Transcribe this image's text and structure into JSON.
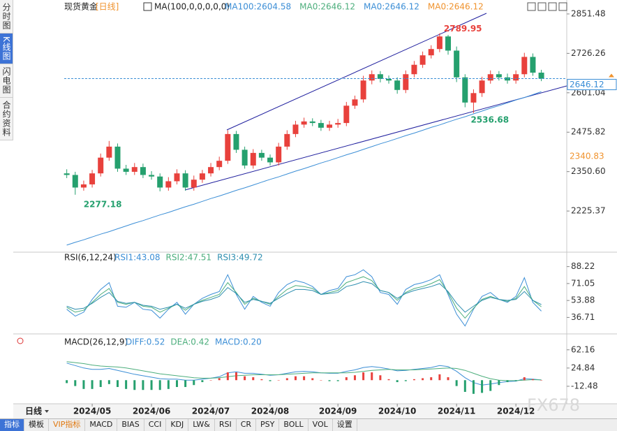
{
  "sidebar": [
    "分时图",
    "K线图",
    "闪电图",
    "合约资料"
  ],
  "chart_data": [
    {
      "type": "candlestick",
      "title": "现货黄金",
      "period": "[日线]",
      "indicator": "MA(100,0,0,0,0,0)",
      "legend": [
        {
          "text": "MA100:2604.58",
          "color": "#3b8ed6"
        },
        {
          "text": "MA0:2646.12",
          "color": "#4cae7c"
        },
        {
          "text": "MA0:2646.12",
          "color": "#3b8ed6"
        },
        {
          "text": "MA0:2646.12",
          "color": "#f0932e"
        }
      ],
      "open": [
        2345,
        2340,
        2300,
        2310,
        2345,
        2395,
        2430,
        2360,
        2350,
        2365,
        2340,
        2335,
        2300,
        2320,
        2345,
        2300,
        2325,
        2345,
        2365,
        2385,
        2470,
        2420,
        2370,
        2410,
        2395,
        2380,
        2430,
        2470,
        2500,
        2510,
        2505,
        2490,
        2500,
        2505,
        2560,
        2580,
        2640,
        2660,
        2645,
        2640,
        2610,
        2660,
        2690,
        2720,
        2740,
        2780,
        2735,
        2650,
        2570,
        2600,
        2640,
        2660,
        2650,
        2640,
        2660,
        2715,
        2665
      ],
      "high": [
        2358,
        2350,
        2322,
        2356,
        2408,
        2448,
        2440,
        2372,
        2378,
        2376,
        2352,
        2345,
        2333,
        2358,
        2355,
        2338,
        2356,
        2378,
        2398,
        2482,
        2480,
        2430,
        2422,
        2420,
        2405,
        2442,
        2482,
        2512,
        2522,
        2520,
        2515,
        2512,
        2518,
        2572,
        2592,
        2655,
        2672,
        2670,
        2656,
        2650,
        2672,
        2702,
        2732,
        2752,
        2789.95,
        2785,
        2748,
        2660,
        2612,
        2652,
        2672,
        2670,
        2662,
        2672,
        2728,
        2726,
        2674
      ],
      "low": [
        2330,
        2277.18,
        2290,
        2300,
        2335,
        2385,
        2350,
        2340,
        2340,
        2330,
        2325,
        2288,
        2290,
        2310,
        2290,
        2290,
        2315,
        2335,
        2355,
        2375,
        2410,
        2360,
        2360,
        2385,
        2370,
        2370,
        2420,
        2460,
        2490,
        2495,
        2480,
        2480,
        2490,
        2495,
        2550,
        2570,
        2628,
        2634,
        2630,
        2598,
        2600,
        2650,
        2680,
        2710,
        2730,
        2722,
        2635,
        2555,
        2536.68,
        2588,
        2630,
        2640,
        2630,
        2630,
        2650,
        2655,
        2638
      ],
      "close": [
        2340,
        2300,
        2310,
        2345,
        2395,
        2430,
        2360,
        2350,
        2365,
        2340,
        2335,
        2300,
        2320,
        2345,
        2300,
        2325,
        2345,
        2365,
        2385,
        2470,
        2420,
        2370,
        2410,
        2395,
        2380,
        2430,
        2470,
        2500,
        2510,
        2505,
        2490,
        2500,
        2505,
        2560,
        2580,
        2640,
        2660,
        2645,
        2640,
        2610,
        2660,
        2690,
        2720,
        2740,
        2780,
        2735,
        2650,
        2570,
        2600,
        2640,
        2660,
        2650,
        2640,
        2660,
        2715,
        2665,
        2646.12
      ],
      "ma100": [
        2117,
        2126,
        2134,
        2143,
        2152,
        2160,
        2169,
        2178,
        2187,
        2195,
        2204,
        2213,
        2221,
        2230,
        2239,
        2247,
        2256,
        2265,
        2273,
        2282,
        2291,
        2299,
        2308,
        2317,
        2326,
        2334,
        2343,
        2352,
        2360,
        2369,
        2378,
        2386,
        2395,
        2404,
        2412,
        2421,
        2430,
        2439,
        2447,
        2456,
        2465,
        2473,
        2482,
        2491,
        2499,
        2508,
        2517,
        2525,
        2534,
        2543,
        2552,
        2560,
        2569,
        2578,
        2586,
        2595,
        2604.58
      ],
      "up_color": "#e8413c",
      "down_color": "#25a06e",
      "ma_color": "#3b8ed6",
      "xlim": [
        -0.3,
        59
      ],
      "xticks": [
        {
          "value": 3,
          "label": "2024/05"
        },
        {
          "value": 10,
          "label": "2024/06"
        },
        {
          "value": 17,
          "label": "2024/07"
        },
        {
          "value": 24,
          "label": "2024/08"
        },
        {
          "value": 32,
          "label": "2024/09"
        },
        {
          "value": 39,
          "label": "2024/10"
        },
        {
          "value": 46,
          "label": "2024/11"
        },
        {
          "value": 53,
          "label": "2024/12"
        }
      ],
      "ylim": [
        2108,
        2878
      ],
      "yticks": [
        2851.48,
        2726.26,
        2601.04,
        2475.82,
        {
          "value": 2350.6,
          "label": "2350.60"
        },
        2225.37
      ],
      "side_label": 2340.83
    },
    {
      "type": "line",
      "title": "RSI(6,12,24)",
      "series": [
        {
          "name": "RSI1:43.08",
          "color": "#3b8ed6",
          "values": [
            45,
            38,
            42,
            55,
            65,
            72,
            48,
            47,
            52,
            45,
            44,
            36,
            45,
            52,
            40,
            50,
            56,
            60,
            63,
            80,
            60,
            45,
            58,
            52,
            48,
            62,
            70,
            74,
            72,
            68,
            60,
            64,
            66,
            78,
            80,
            85,
            78,
            62,
            60,
            50,
            65,
            70,
            72,
            75,
            80,
            60,
            40,
            28,
            45,
            58,
            62,
            55,
            52,
            58,
            77,
            52,
            43.08
          ]
        },
        {
          "name": "RSI2:47.51",
          "color": "#4cae7c",
          "values": [
            47,
            42,
            44,
            52,
            60,
            66,
            52,
            50,
            52,
            48,
            47,
            42,
            46,
            50,
            44,
            50,
            54,
            57,
            60,
            72,
            62,
            50,
            56,
            53,
            50,
            58,
            65,
            69,
            68,
            66,
            60,
            62,
            64,
            72,
            75,
            78,
            74,
            64,
            62,
            54,
            62,
            66,
            68,
            71,
            75,
            62,
            46,
            36,
            46,
            55,
            58,
            55,
            53,
            56,
            68,
            54,
            47.51
          ]
        },
        {
          "name": "RSI3:49.72",
          "color": "#2f8fb0",
          "values": [
            48,
            45,
            46,
            51,
            57,
            62,
            53,
            51,
            52,
            49,
            48,
            45,
            47,
            50,
            46,
            50,
            53,
            55,
            58,
            67,
            61,
            52,
            55,
            53,
            51,
            56,
            61,
            65,
            65,
            64,
            60,
            61,
            62,
            68,
            70,
            73,
            71,
            64,
            62,
            56,
            61,
            64,
            66,
            68,
            71,
            63,
            51,
            42,
            48,
            54,
            57,
            55,
            54,
            55,
            63,
            54,
            49.72
          ]
        }
      ],
      "ylim": [
        20,
        100
      ],
      "yticks": [
        88.22,
        71.05,
        53.88,
        36.71
      ]
    },
    {
      "type": "macd",
      "title": "MACD(26,12,9)",
      "series": [
        {
          "name": "DIFF:0.52",
          "color": "#3b8ed6",
          "values": [
            35,
            30,
            25,
            22,
            22,
            24,
            20,
            16,
            12,
            9,
            6,
            3,
            2,
            2,
            0,
            0,
            2,
            4,
            7,
            15,
            17,
            14,
            14,
            12,
            10,
            11,
            14,
            17,
            18,
            17,
            15,
            14,
            14,
            18,
            21,
            26,
            28,
            26,
            23,
            19,
            20,
            22,
            24,
            26,
            30,
            28,
            18,
            5,
            -5,
            -10,
            -8,
            -5,
            -3,
            -2,
            3,
            2,
            0.52
          ]
        },
        {
          "name": "DEA:0.42",
          "color": "#4cae7c",
          "values": [
            38,
            36,
            34,
            31,
            29,
            28,
            27,
            25,
            22,
            19,
            16,
            13,
            11,
            9,
            7,
            5,
            4,
            4,
            5,
            7,
            9,
            10,
            11,
            11,
            11,
            11,
            12,
            13,
            14,
            15,
            15,
            15,
            15,
            15,
            16,
            18,
            20,
            21,
            22,
            21,
            21,
            21,
            22,
            23,
            24,
            25,
            24,
            20,
            14,
            8,
            3,
            0,
            -1,
            -1,
            0,
            1,
            0.42
          ]
        },
        {
          "name": "MACD:0.20",
          "color": "#3b8ed6",
          "up_color": "#e8413c",
          "down_color": "#25a06e",
          "values": [
            -6,
            -12,
            -18,
            -18,
            -14,
            -8,
            -14,
            -18,
            -20,
            -20,
            -20,
            -20,
            -18,
            -14,
            -14,
            -10,
            -4,
            0,
            4,
            16,
            16,
            8,
            6,
            2,
            -2,
            0,
            4,
            8,
            8,
            4,
            0,
            -2,
            -2,
            6,
            10,
            16,
            16,
            10,
            2,
            -4,
            -2,
            2,
            4,
            6,
            12,
            6,
            -12,
            -24,
            -28,
            -26,
            -22,
            -10,
            -4,
            -2,
            6,
            2,
            0.2
          ]
        }
      ],
      "ylim": [
        -44,
        89
      ],
      "yticks": [
        62.16,
        24.84,
        -12.48
      ]
    }
  ],
  "period_selector": "日线",
  "tabs": [
    "指标",
    "模板",
    "VIP指标",
    "MACD",
    "BIAS",
    "CCI",
    "KDJ",
    "LW&",
    "RSI",
    "CR",
    "PSY",
    "BOLL",
    "VOL",
    "设置"
  ],
  "watermark": "FX678"
}
